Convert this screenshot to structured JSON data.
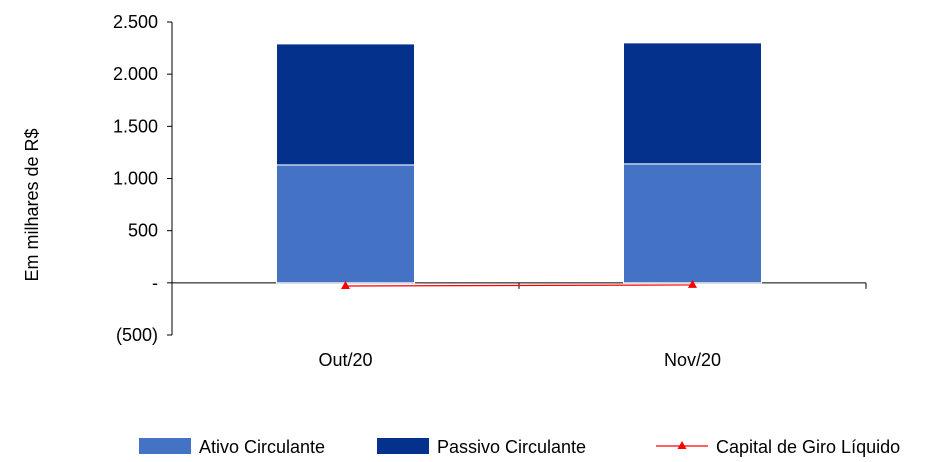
{
  "chart_data": {
    "type": "bar",
    "stacked": true,
    "categories": [
      "Out/20",
      "Nov/20"
    ],
    "series": [
      {
        "name": "Ativo Circulante",
        "type": "bar",
        "color": "#4472C4",
        "values": [
          1130,
          1140
        ]
      },
      {
        "name": "Passivo Circulante",
        "type": "bar",
        "color": "#03318C",
        "values": [
          1160,
          1160
        ]
      },
      {
        "name": "Capital de Giro Líquido",
        "type": "line",
        "color": "#FF0000",
        "marker": "triangle",
        "values": [
          -30,
          -20
        ]
      }
    ],
    "ylabel": "Em milhares de R$",
    "ylim": [
      -500,
      2500
    ],
    "yticks": [
      -500,
      0,
      500,
      1000,
      1500,
      2000,
      2500
    ],
    "ytick_labels": [
      "(500)",
      "-",
      "500",
      "1.000",
      "1.500",
      "2.000",
      "2.500"
    ],
    "grid": false,
    "legend_position": "bottom"
  }
}
